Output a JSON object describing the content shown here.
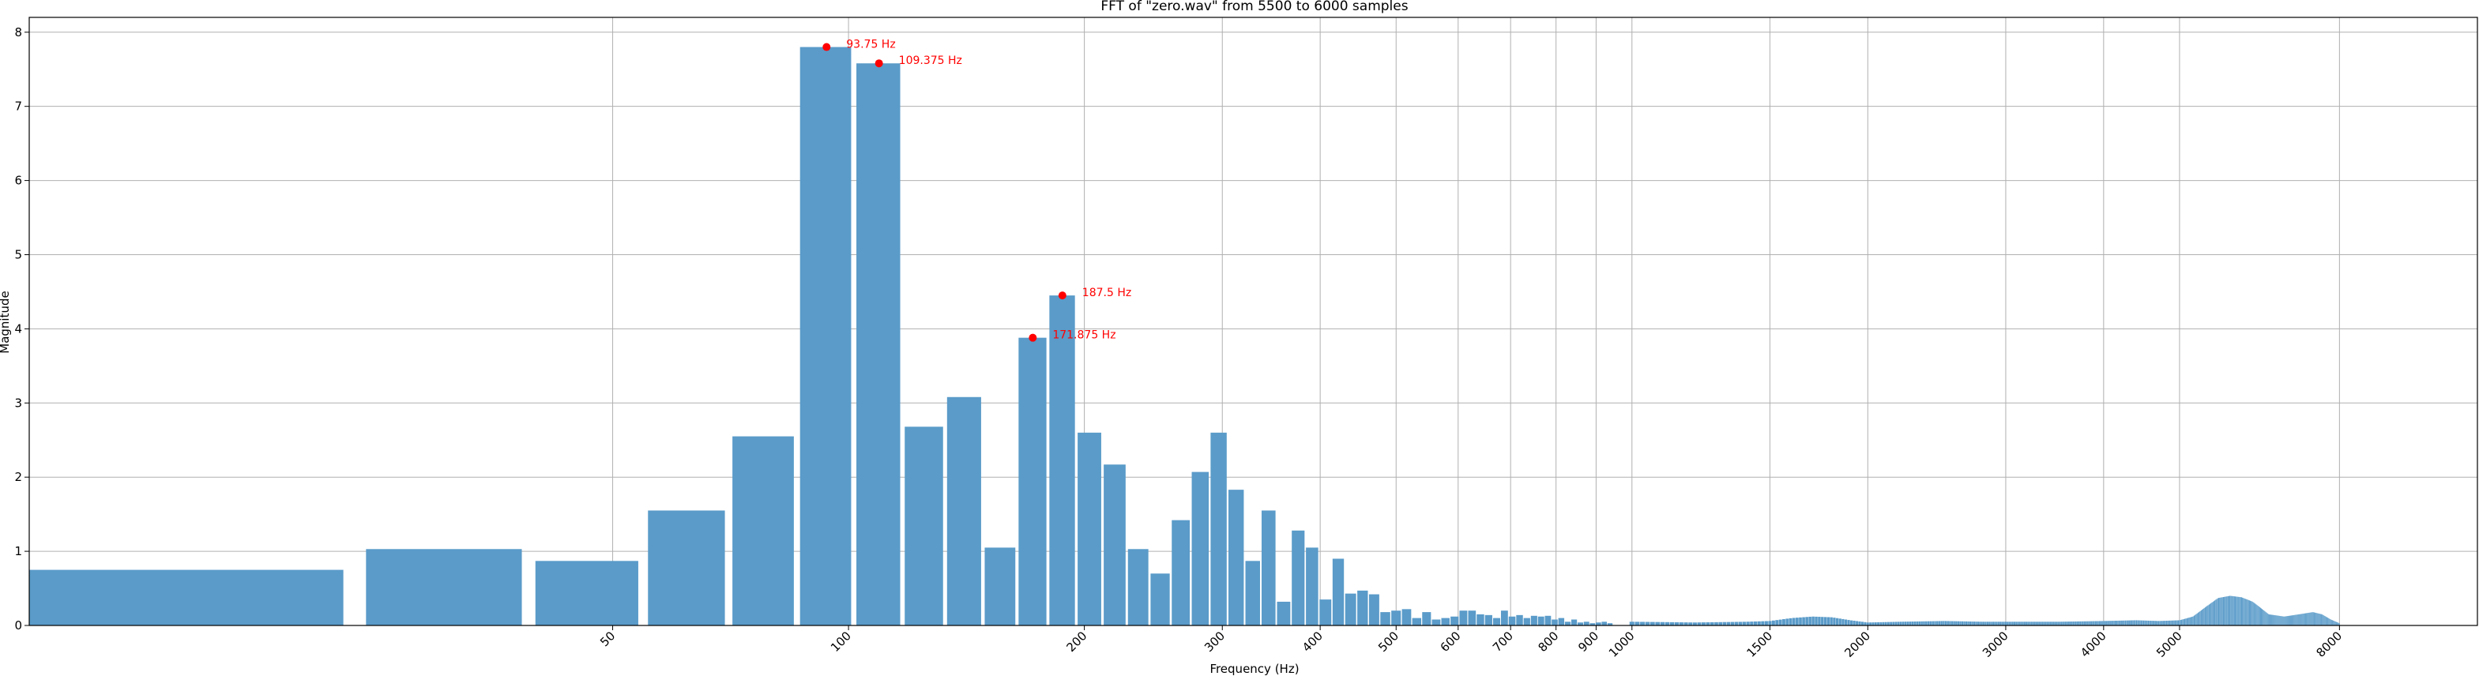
{
  "chart_data": {
    "type": "bar",
    "title": "FFT of \"zero.wav\" from 5500 to 6000 samples",
    "xlabel": "Frequency (Hz)",
    "ylabel": "Magnitude",
    "xscale": "log",
    "xlim": [
      9,
      12000
    ],
    "ylim": [
      0,
      8.2
    ],
    "grid": true,
    "bar_color": "#5a9bc9",
    "annotation_color": "#ff0000",
    "x_ticks": [
      {
        "value": 50,
        "label": "50"
      },
      {
        "value": 100,
        "label": "100"
      },
      {
        "value": 200,
        "label": "200"
      },
      {
        "value": 300,
        "label": "300"
      },
      {
        "value": 400,
        "label": "400"
      },
      {
        "value": 500,
        "label": "500"
      },
      {
        "value": 600,
        "label": "600"
      },
      {
        "value": 700,
        "label": "700"
      },
      {
        "value": 800,
        "label": "800"
      },
      {
        "value": 900,
        "label": "900"
      },
      {
        "value": 1000,
        "label": "1000"
      },
      {
        "value": 1500,
        "label": "1500"
      },
      {
        "value": 2000,
        "label": "2000"
      },
      {
        "value": 3000,
        "label": "3000"
      },
      {
        "value": 4000,
        "label": "4000"
      },
      {
        "value": 5000,
        "label": "5000"
      },
      {
        "value": 8000,
        "label": "8000"
      }
    ],
    "y_ticks": [
      0,
      1,
      2,
      3,
      4,
      5,
      6,
      7,
      8
    ],
    "bins": {
      "bin_width_hz": 15.625,
      "first_bin_hz": 15.625,
      "values": [
        0.75,
        1.03,
        0.87,
        1.55,
        2.55,
        7.8,
        7.58,
        2.68,
        3.08,
        1.05,
        3.88,
        4.45,
        2.6,
        2.17,
        1.03,
        0.7,
        1.42,
        2.07,
        2.6,
        1.83,
        0.87,
        1.55,
        0.32,
        1.28,
        1.05,
        0.35,
        0.9,
        0.43,
        0.47,
        0.42,
        0.18,
        0.2,
        0.22,
        0.1,
        0.18,
        0.08,
        0.1,
        0.12,
        0.2,
        0.2,
        0.15,
        0.14,
        0.1,
        0.2,
        0.12,
        0.14,
        0.1,
        0.13,
        0.12,
        0.13,
        0.08,
        0.1,
        0.05,
        0.08,
        0.04,
        0.05,
        0.03,
        0.04,
        0.05,
        0.03
      ]
    },
    "zero_bin": {
      "x": 0,
      "value": 0.02
    },
    "tail_envelope": [
      [
        1000,
        0.05
      ],
      [
        1200,
        0.04
      ],
      [
        1400,
        0.05
      ],
      [
        1500,
        0.06
      ],
      [
        1600,
        0.1
      ],
      [
        1700,
        0.12
      ],
      [
        1800,
        0.11
      ],
      [
        1900,
        0.07
      ],
      [
        2000,
        0.04
      ],
      [
        2200,
        0.05
      ],
      [
        2500,
        0.06
      ],
      [
        2800,
        0.05
      ],
      [
        3000,
        0.05
      ],
      [
        3500,
        0.05
      ],
      [
        4000,
        0.06
      ],
      [
        4400,
        0.07
      ],
      [
        4700,
        0.06
      ],
      [
        5000,
        0.07
      ],
      [
        5200,
        0.12
      ],
      [
        5400,
        0.25
      ],
      [
        5600,
        0.37
      ],
      [
        5800,
        0.4
      ],
      [
        6000,
        0.38
      ],
      [
        6200,
        0.32
      ],
      [
        6500,
        0.15
      ],
      [
        6800,
        0.12
      ],
      [
        7100,
        0.15
      ],
      [
        7400,
        0.18
      ],
      [
        7600,
        0.15
      ],
      [
        7800,
        0.08
      ],
      [
        8000,
        0.03
      ]
    ],
    "annotations": [
      {
        "x": 93.75,
        "y": 7.8,
        "label": "93.75 Hz"
      },
      {
        "x": 109.375,
        "y": 7.58,
        "label": "109.375 Hz"
      },
      {
        "x": 171.875,
        "y": 3.88,
        "label": "171.875 Hz"
      },
      {
        "x": 187.5,
        "y": 4.45,
        "label": "187.5 Hz"
      }
    ]
  }
}
